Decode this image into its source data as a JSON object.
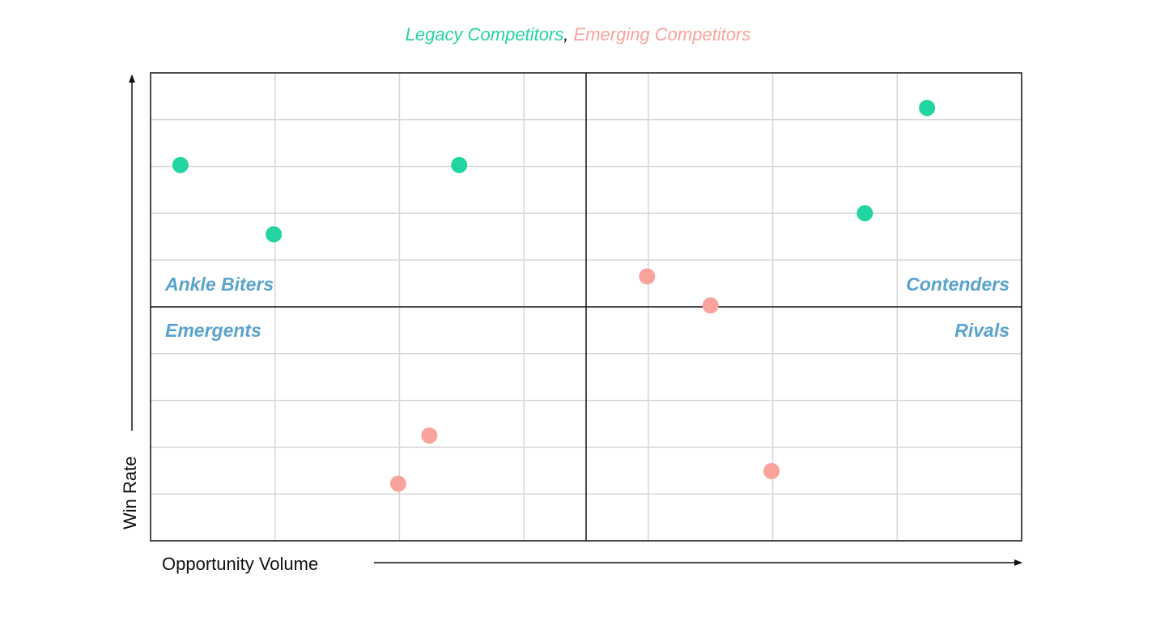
{
  "legend": {
    "series_a": "Legacy Competitors",
    "separator": ",",
    "series_b": "Emerging Competitors"
  },
  "colors": {
    "legacy": "#22d49f",
    "emerging": "#f9a39c",
    "quadrant_label": "#5aa3cc",
    "grid": "#d6d6d6",
    "frame": "#111111"
  },
  "quadrants": {
    "top_left": "Ankle Biters",
    "top_right": "Contenders",
    "bottom_left": "Emergents",
    "bottom_right": "Rivals"
  },
  "chart_data": {
    "type": "scatter",
    "xlabel": "Opportunity Volume",
    "ylabel": "Win Rate",
    "xlim": [
      0,
      7
    ],
    "ylim": [
      0,
      10
    ],
    "x_gridlines": 7,
    "y_gridlines": 10,
    "grid": true,
    "series": [
      {
        "name": "Legacy Competitors",
        "color_key": "legacy",
        "points": [
          [
            0.24,
            8.03
          ],
          [
            0.99,
            6.55
          ],
          [
            2.48,
            8.03
          ],
          [
            5.74,
            7.0
          ],
          [
            6.24,
            9.25
          ]
        ]
      },
      {
        "name": "Emerging Competitors",
        "color_key": "emerging",
        "points": [
          [
            3.99,
            5.65
          ],
          [
            4.5,
            5.03
          ],
          [
            2.24,
            2.25
          ],
          [
            1.99,
            1.22
          ],
          [
            4.99,
            1.49
          ]
        ]
      }
    ]
  }
}
